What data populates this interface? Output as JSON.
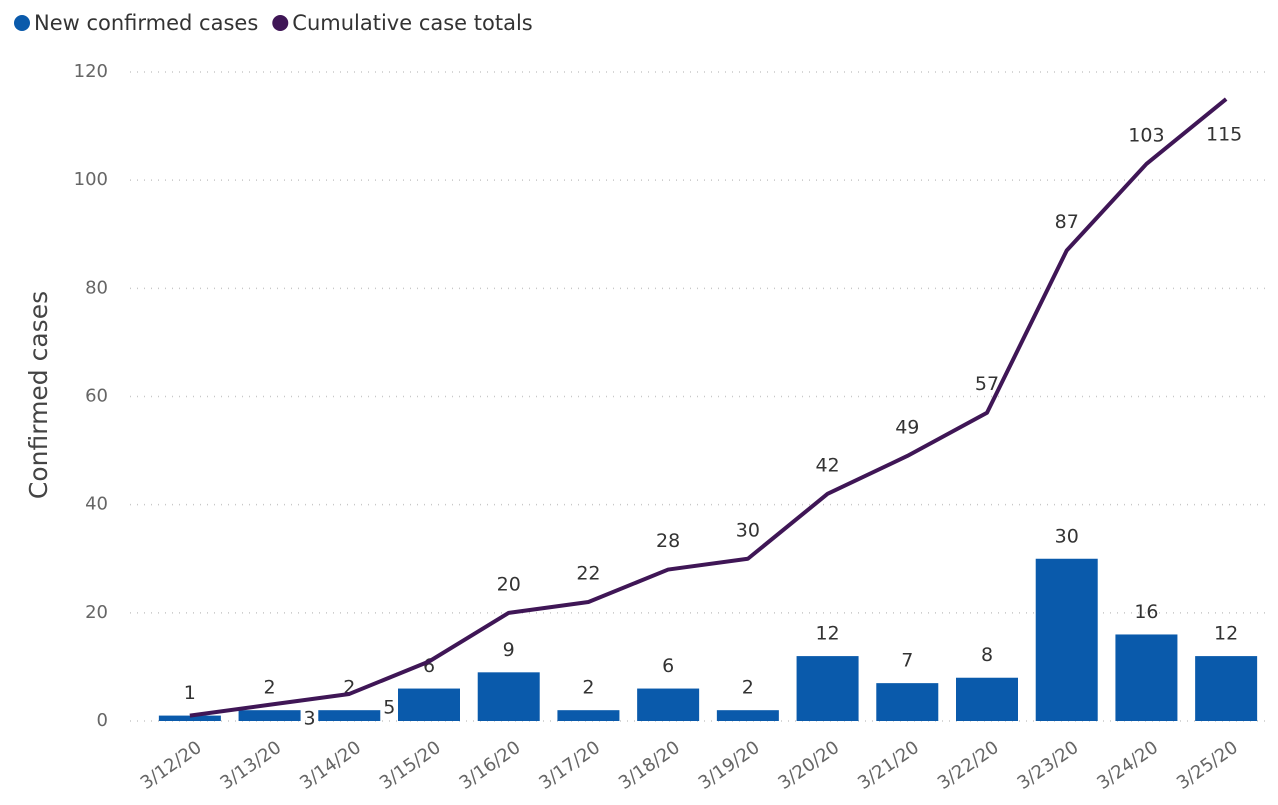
{
  "chart_data": {
    "type": "combo",
    "y_label": "Confirmed cases",
    "categories": [
      "3/12/20",
      "3/13/20",
      "3/14/20",
      "3/15/20",
      "3/16/20",
      "3/17/20",
      "3/18/20",
      "3/19/20",
      "3/20/20",
      "3/21/20",
      "3/22/20",
      "3/23/20",
      "3/24/20",
      "3/25/20"
    ],
    "series": [
      {
        "name": "New confirmed cases",
        "type": "bar",
        "color": "#0a5aab",
        "values": [
          1,
          2,
          2,
          6,
          9,
          2,
          6,
          2,
          12,
          7,
          8,
          30,
          16,
          12
        ]
      },
      {
        "name": "Cumulative case totals",
        "type": "line",
        "color": "#3f1656",
        "values": [
          1,
          3,
          5,
          11,
          20,
          22,
          28,
          30,
          42,
          49,
          57,
          87,
          103,
          115
        ],
        "value_labels": [
          null,
          "3",
          "5",
          null,
          "20",
          "22",
          "28",
          "30",
          "42",
          "49",
          "57",
          "87",
          "103",
          "115"
        ]
      }
    ],
    "ylim": [
      0,
      120
    ],
    "yticks": [
      0,
      20,
      40,
      60,
      80,
      100,
      120
    ],
    "grid": true
  }
}
